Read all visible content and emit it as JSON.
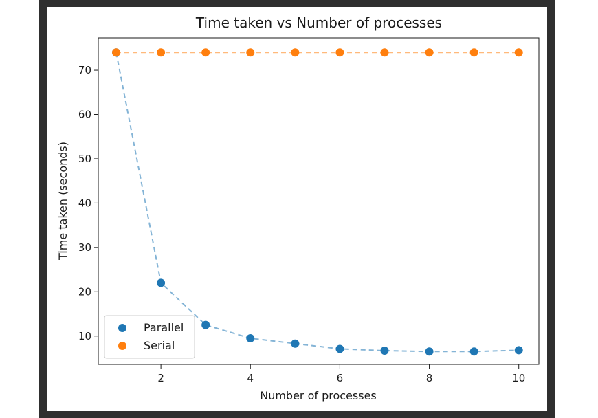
{
  "colors": {
    "parallel": "#1f77b4",
    "serial": "#ff7f0e",
    "frame": "#2f2f2f"
  },
  "chart_data": {
    "type": "scatter",
    "title": "Time taken vs Number of processes",
    "xlabel": "Number of processes",
    "ylabel": "Time taken (seconds)",
    "xlim": [
      0.6,
      10.45
    ],
    "ylim": [
      3.6,
      77.3
    ],
    "xticks": [
      2,
      4,
      6,
      8,
      10
    ],
    "yticks": [
      10,
      20,
      30,
      40,
      50,
      60,
      70
    ],
    "grid": false,
    "legend_position": "lower-left",
    "x": [
      1,
      2,
      3,
      4,
      5,
      6,
      7,
      8,
      9,
      10
    ],
    "series": [
      {
        "name": "Parallel",
        "color": "#1f77b4",
        "values": [
          74.0,
          22.0,
          12.5,
          9.5,
          8.3,
          7.1,
          6.7,
          6.5,
          6.5,
          6.8
        ],
        "line_style": "dashed"
      },
      {
        "name": "Serial",
        "color": "#ff7f0e",
        "values": [
          74.0,
          74.0,
          74.0,
          74.0,
          74.0,
          74.0,
          74.0,
          74.0,
          74.0,
          74.0
        ],
        "line_style": "dashed"
      }
    ]
  }
}
